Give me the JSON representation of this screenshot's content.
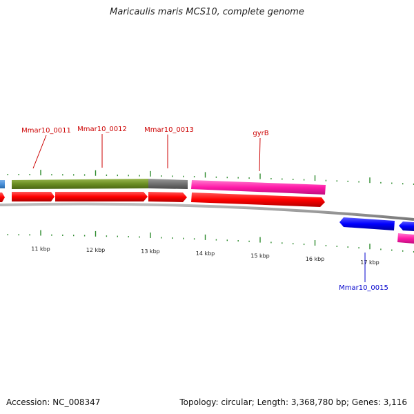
{
  "title": "Maricaulis maris MCS10, complete genome",
  "accession": "Accession: NC_008347",
  "summary": "Topology: circular; Length: 3,368,780 bp; Genes: 3,116",
  "colors": {
    "cds_red": "#ff0000",
    "cds_blue": "#0000ff",
    "pink": "#ff1aa8",
    "olive": "#6b8e23",
    "gray": "#707070",
    "lightblue": "#4a90d9",
    "tick_green": "#2e8b2e",
    "label_red": "#cc0000",
    "label_blue": "#0000cc"
  },
  "ticks": [
    {
      "label": "11 kbp",
      "kbp": 11
    },
    {
      "label": "12 kbp",
      "kbp": 12
    },
    {
      "label": "13 kbp",
      "kbp": 13
    },
    {
      "label": "14 kbp",
      "kbp": 14
    },
    {
      "label": "15 kbp",
      "kbp": 15
    },
    {
      "label": "16 kbp",
      "kbp": 16
    },
    {
      "label": "17 kbp",
      "kbp": 17
    }
  ],
  "gene_labels": [
    {
      "name": "Mmar10_0011",
      "strand": "forward"
    },
    {
      "name": "Mmar10_0012",
      "strand": "forward"
    },
    {
      "name": "Mmar10_0013",
      "strand": "forward"
    },
    {
      "name": "gyrB",
      "strand": "forward"
    },
    {
      "name": "Mmar10_0015",
      "strand": "reverse"
    }
  ]
}
